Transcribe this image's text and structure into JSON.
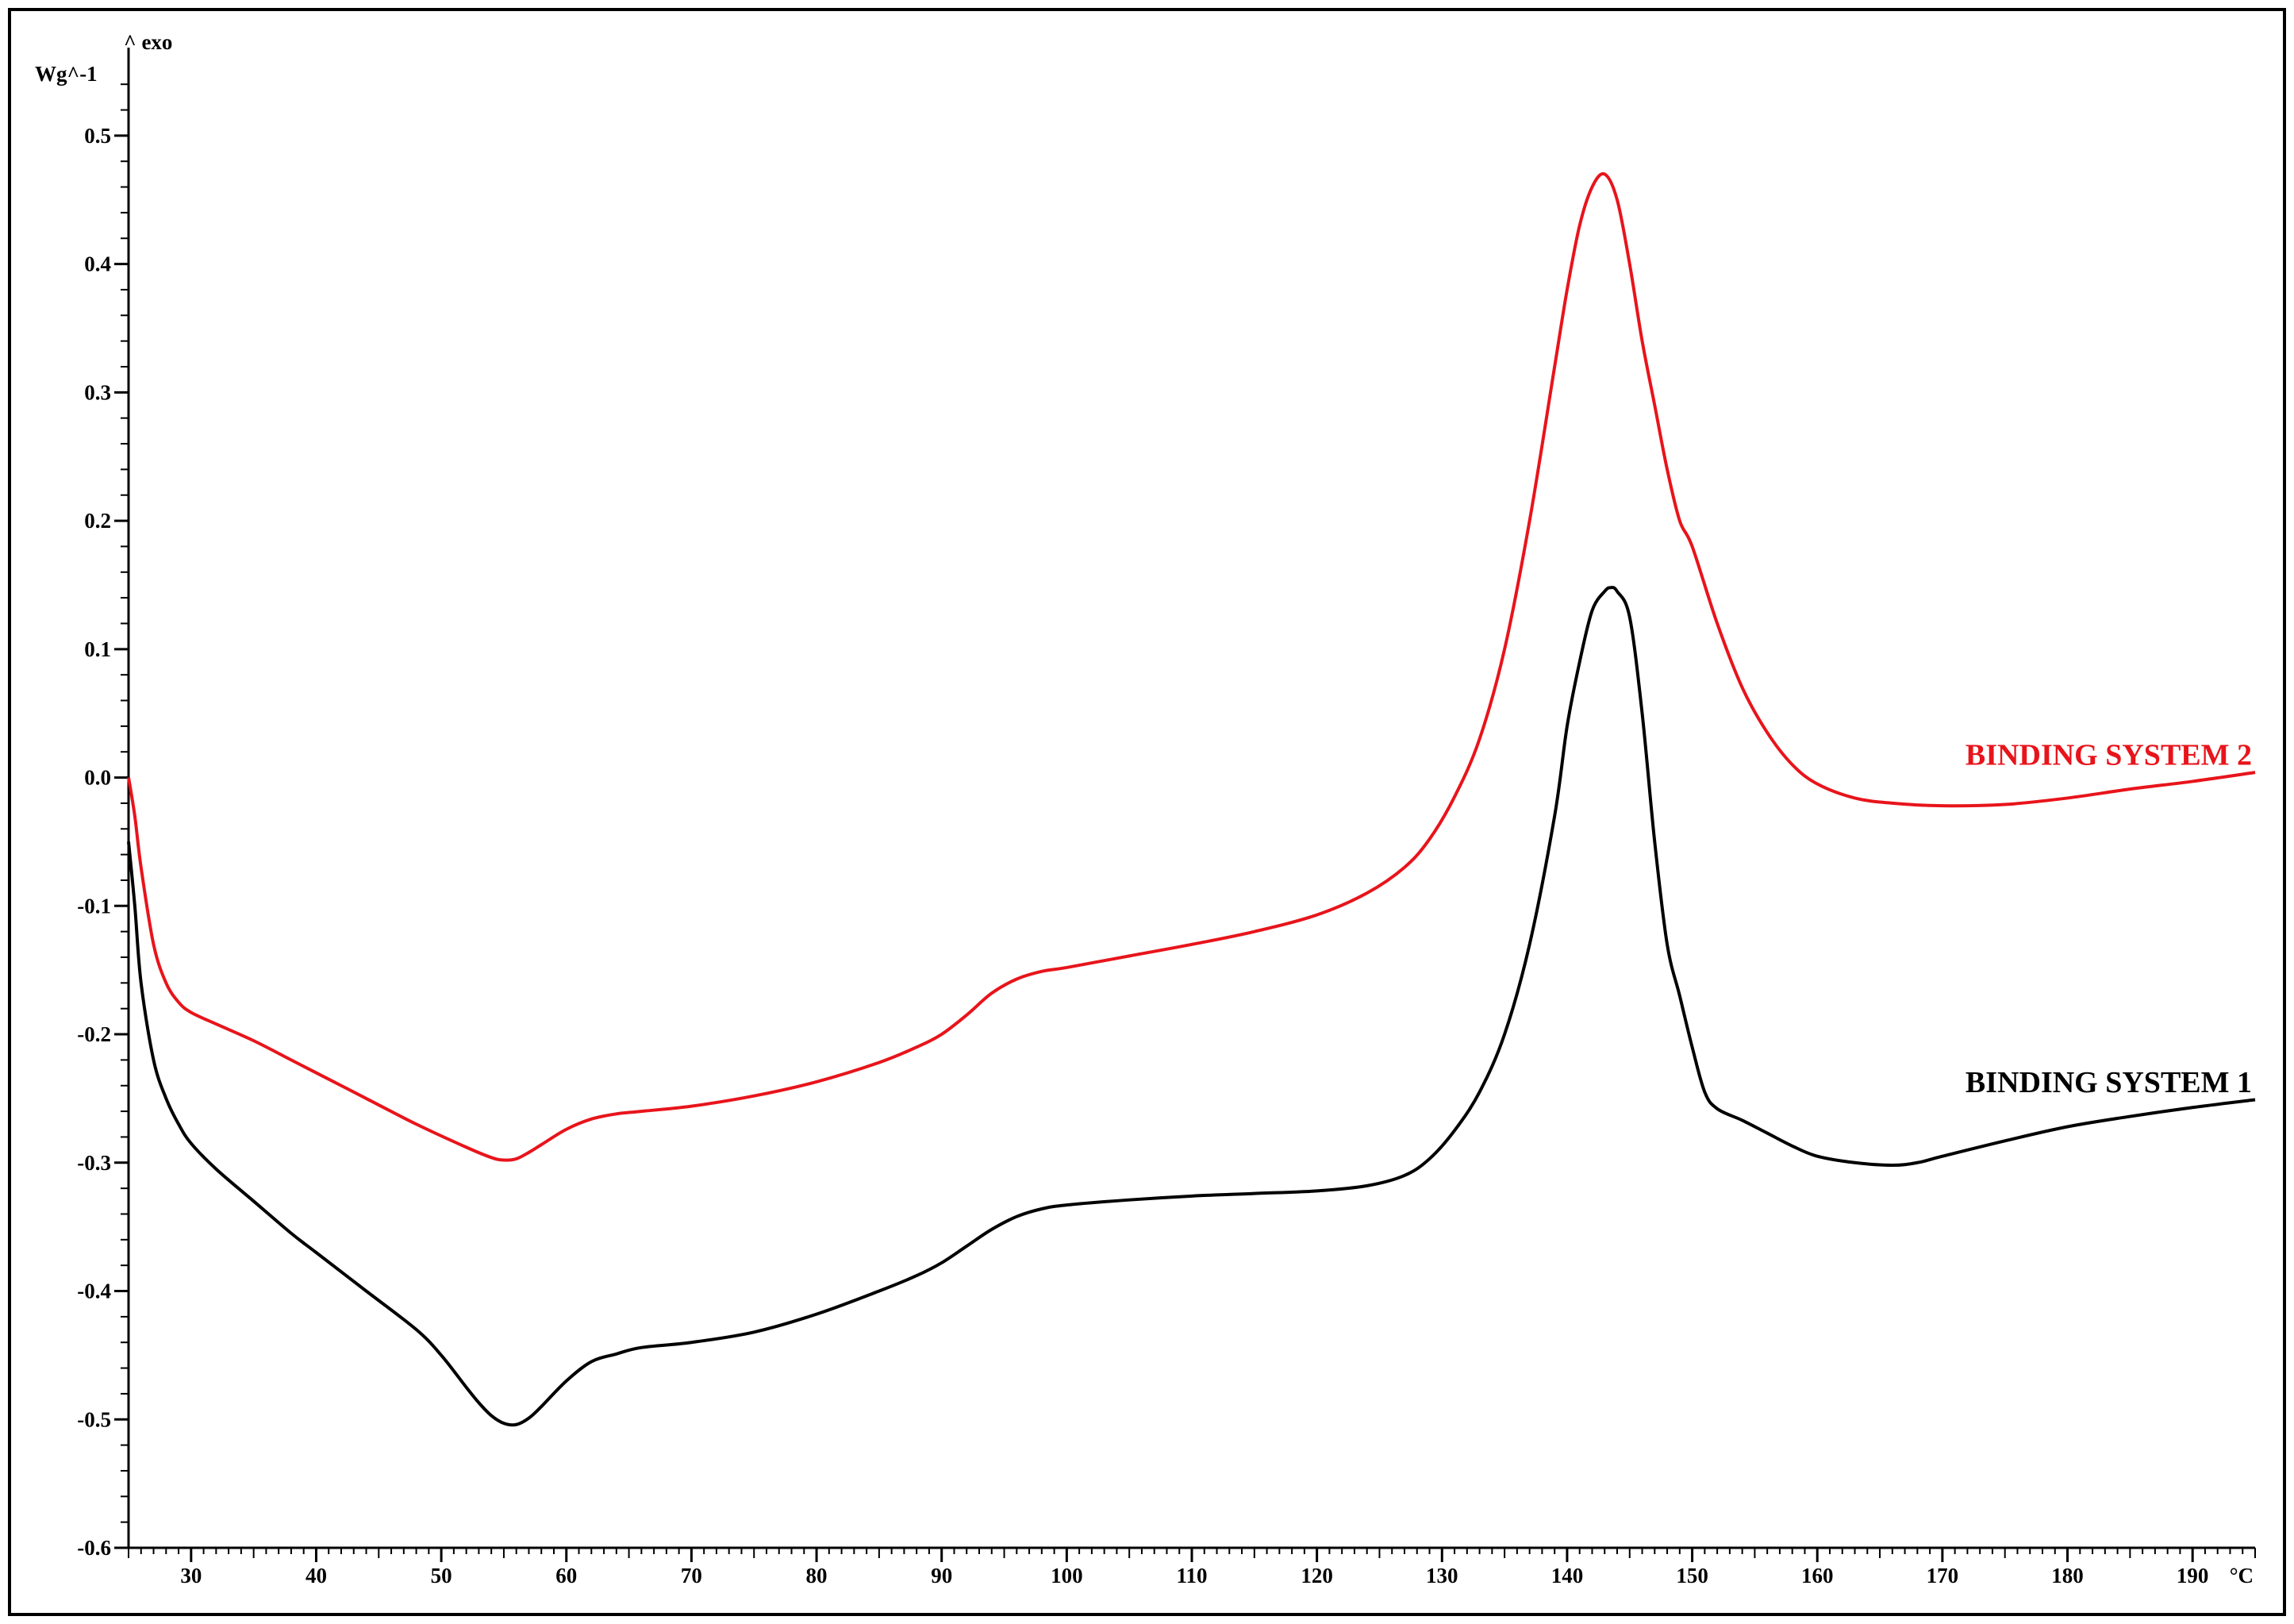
{
  "chart_data": {
    "type": "line",
    "title": "",
    "y_unit_label": "Wg^-1",
    "exo_label": "^ exo",
    "x_unit_label": "°C",
    "xlim": [
      25,
      195
    ],
    "ylim": [
      -0.6,
      0.55
    ],
    "x_ticks": [
      30,
      40,
      50,
      60,
      70,
      80,
      90,
      100,
      110,
      120,
      130,
      140,
      150,
      160,
      170,
      180,
      190
    ],
    "y_ticks": [
      0.5,
      0.4,
      0.3,
      0.2,
      0.1,
      0.0,
      -0.1,
      -0.2,
      -0.3,
      -0.4,
      -0.5,
      -0.6
    ],
    "y_tick_labels": [
      "0.5",
      "0.4",
      "0.3",
      "0.2",
      "0.1",
      "0.0",
      "-0.1",
      "-0.2",
      "-0.3",
      "-0.4",
      "-0.5",
      "-0.6"
    ],
    "grid": false,
    "series": [
      {
        "name": "BINDING SYSTEM 2",
        "color": "#e8141b",
        "x": [
          25,
          25.5,
          26,
          27,
          28,
          29,
          30,
          32,
          35,
          38,
          40,
          44,
          48,
          52,
          54,
          55,
          56,
          57,
          58,
          60,
          62,
          64,
          66,
          70,
          75,
          80,
          85,
          88,
          90,
          92,
          94,
          96,
          98,
          100,
          105,
          110,
          115,
          120,
          124,
          127,
          129,
          131,
          133,
          135,
          137,
          139,
          140,
          141,
          142,
          143,
          144,
          145,
          146,
          147,
          148,
          149,
          150,
          152,
          154,
          156,
          158,
          160,
          163,
          166,
          170,
          175,
          180,
          185,
          190,
          195
        ],
        "y": [
          0.0,
          -0.03,
          -0.07,
          -0.13,
          -0.16,
          -0.175,
          -0.183,
          -0.192,
          -0.205,
          -0.22,
          -0.23,
          -0.25,
          -0.27,
          -0.288,
          -0.296,
          -0.298,
          -0.297,
          -0.292,
          -0.286,
          -0.274,
          -0.266,
          -0.262,
          -0.26,
          -0.256,
          -0.248,
          -0.237,
          -0.222,
          -0.21,
          -0.2,
          -0.185,
          -0.168,
          -0.157,
          -0.151,
          -0.148,
          -0.139,
          -0.13,
          -0.12,
          -0.107,
          -0.09,
          -0.07,
          -0.048,
          -0.015,
          0.03,
          0.1,
          0.2,
          0.32,
          0.38,
          0.43,
          0.46,
          0.47,
          0.45,
          0.4,
          0.34,
          0.29,
          0.24,
          0.2,
          0.18,
          0.12,
          0.07,
          0.035,
          0.01,
          -0.005,
          -0.016,
          -0.02,
          -0.022,
          -0.021,
          -0.016,
          -0.009,
          -0.003,
          0.004
        ]
      },
      {
        "name": "BINDING SYSTEM 1",
        "color": "#000000",
        "x": [
          25,
          25.5,
          26,
          27,
          28,
          29,
          30,
          32,
          35,
          38,
          40,
          44,
          48,
          50,
          52,
          53,
          54,
          55,
          56,
          57,
          58,
          60,
          62,
          64,
          66,
          70,
          75,
          80,
          85,
          88,
          90,
          92,
          94,
          96,
          98,
          100,
          105,
          110,
          115,
          120,
          124,
          127,
          129,
          131,
          133,
          135,
          137,
          139,
          140,
          141,
          142,
          143,
          143.5,
          144,
          145,
          146,
          147,
          148,
          149,
          150,
          151,
          152,
          154,
          156,
          158,
          160,
          163,
          166,
          168,
          170,
          175,
          180,
          185,
          190,
          195
        ],
        "y": [
          -0.05,
          -0.1,
          -0.16,
          -0.22,
          -0.25,
          -0.27,
          -0.285,
          -0.305,
          -0.33,
          -0.355,
          -0.37,
          -0.4,
          -0.43,
          -0.45,
          -0.475,
          -0.487,
          -0.497,
          -0.503,
          -0.504,
          -0.499,
          -0.49,
          -0.47,
          -0.455,
          -0.449,
          -0.444,
          -0.44,
          -0.432,
          -0.418,
          -0.4,
          -0.388,
          -0.378,
          -0.365,
          -0.352,
          -0.342,
          -0.336,
          -0.333,
          -0.329,
          -0.326,
          -0.324,
          -0.322,
          -0.318,
          -0.31,
          -0.297,
          -0.275,
          -0.245,
          -0.2,
          -0.13,
          -0.03,
          0.04,
          0.09,
          0.13,
          0.145,
          0.148,
          0.145,
          0.125,
          0.05,
          -0.05,
          -0.13,
          -0.17,
          -0.21,
          -0.245,
          -0.258,
          -0.267,
          -0.277,
          -0.287,
          -0.295,
          -0.3,
          -0.302,
          -0.3,
          -0.295,
          -0.283,
          -0.272,
          -0.264,
          -0.257,
          -0.251
        ]
      }
    ],
    "annotations": [
      {
        "text": "BINDING SYSTEM 2",
        "color": "#e8141b",
        "anchor": "end",
        "x": 195,
        "y": 0.01
      },
      {
        "text": "BINDING SYSTEM 1",
        "color": "#000000",
        "anchor": "end",
        "x": 195,
        "y": -0.245
      }
    ]
  }
}
